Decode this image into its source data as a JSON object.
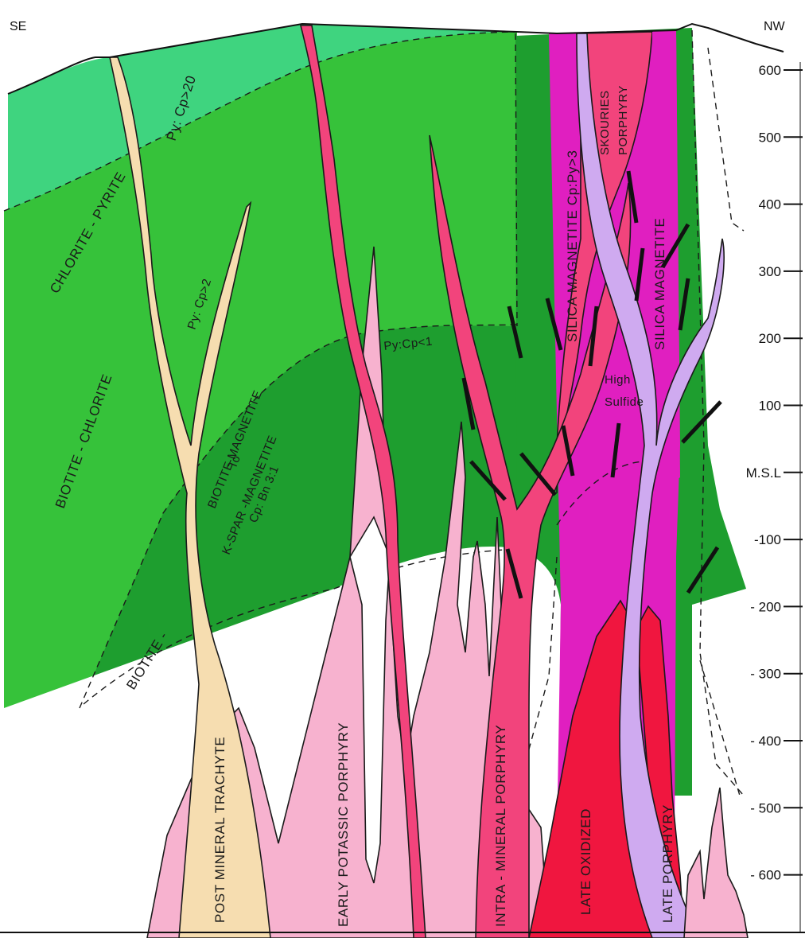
{
  "directions": {
    "left": "SE",
    "right": "NW"
  },
  "elevation_axis": {
    "ticks": [
      "600",
      "500",
      "400",
      "300",
      "200",
      "100",
      "M.S.L",
      "-100",
      "- 200",
      "- 300",
      "- 400",
      "- 500",
      "- 600"
    ]
  },
  "alteration_zones": [
    {
      "id": "chlorite-pyrite",
      "label": "CHLORITE - PYRITE",
      "ratio": "Py: Cp>20",
      "color": "#3fd47f"
    },
    {
      "id": "biotite-chlorite",
      "label": "BIOTITE - CHLORITE",
      "ratio": "Py: Cp>2",
      "color": "#36c23a"
    },
    {
      "id": "biotite-magnetite",
      "label_lines": [
        "BIOTITE MAGNETITE",
        "To",
        "K-SPAR -MAGNETITE",
        "Cp: Bn 3:1"
      ],
      "ratio": "Py:Cp<1",
      "color": "#1e9e2f"
    },
    {
      "id": "biotite",
      "label": "BIOTITE -",
      "color": "#1e9e2f"
    },
    {
      "id": "silica-magnetite-left",
      "label": "SILICA MAGNETITE Cp:Py>3",
      "color": "#e01fc0"
    },
    {
      "id": "silica-magnetite-right",
      "label": "SILICA MAGNETITE",
      "color": "#e01fc0"
    },
    {
      "id": "high-sulfide",
      "label_lines": [
        "High",
        "Sulfide"
      ]
    }
  ],
  "intrusions": [
    {
      "id": "skouries-porphyry",
      "label_lines": [
        "SKOURIES",
        "PORPHYRY"
      ],
      "color": "#e01fc0"
    },
    {
      "id": "post-mineral-trachyte",
      "label": "POST MINERAL TRACHYTE",
      "color": "#f6ddb0"
    },
    {
      "id": "early-potassic-porphyry",
      "label": "EARLY POTASSIC PORPHYRY",
      "color": "#f7b2cf"
    },
    {
      "id": "intra-mineral-porphyry",
      "label": "INTRA - MINERAL PORPHYRY",
      "color": "#f2447c"
    },
    {
      "id": "late-oxidized",
      "label": "LATE OXIDIZED",
      "color": "#f0163f"
    },
    {
      "id": "late-porphyry",
      "label": "LATE PORPHYRY",
      "color": "#cfaaf0"
    }
  ]
}
